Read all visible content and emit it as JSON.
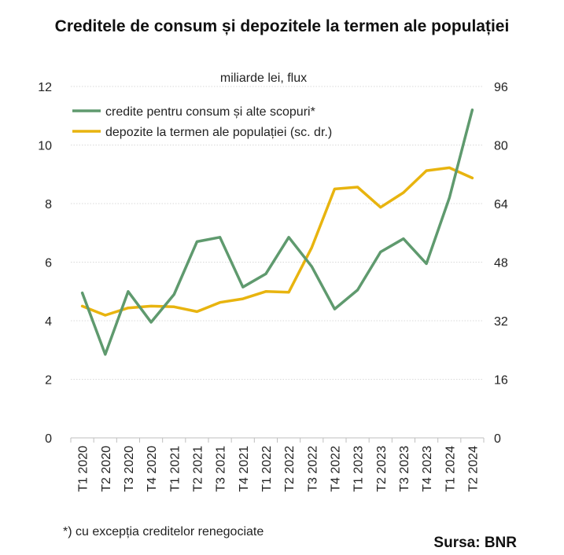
{
  "chart_data": {
    "type": "line",
    "title": "Creditele de consum și depozitele la termen ale populației",
    "unit_label": "miliarde lei, flux",
    "categories": [
      "T1 2020",
      "T2 2020",
      "T3 2020",
      "T4 2020",
      "T1 2021",
      "T2 2021",
      "T3 2021",
      "T4 2021",
      "T1 2022",
      "T2 2022",
      "T3 2022",
      "T4 2022",
      "T1 2023",
      "T2 2023",
      "T3 2023",
      "T4 2023",
      "T1 2024",
      "T2 2024"
    ],
    "y_left": {
      "min": 0,
      "max": 12,
      "ticks": [
        0,
        2,
        4,
        6,
        8,
        10,
        12
      ]
    },
    "y_right": {
      "min": 0,
      "max": 96,
      "ticks": [
        0,
        16,
        32,
        48,
        64,
        80,
        96
      ]
    },
    "grid": true,
    "legend_position": "top-left",
    "series": [
      {
        "name": "credite pentru consum și alte scopuri*",
        "axis": "left",
        "color": "#5f9a6e",
        "values": [
          4.95,
          2.85,
          5.0,
          3.95,
          4.9,
          6.7,
          6.85,
          5.15,
          5.6,
          6.85,
          5.85,
          4.4,
          5.05,
          6.35,
          6.8,
          5.95,
          8.2,
          11.2
        ]
      },
      {
        "name": "depozite la termen ale populației (sc. dr.)",
        "axis": "right",
        "color": "#e8b40f",
        "values": [
          36.0,
          33.5,
          35.5,
          36.0,
          35.8,
          34.5,
          37.0,
          38.0,
          40.0,
          39.8,
          52.0,
          68.0,
          68.5,
          63.0,
          67.0,
          73.0,
          73.8,
          71.0
        ]
      }
    ]
  },
  "footnote": "*) cu excepția creditelor renegociate",
  "source": "Sursa: BNR"
}
